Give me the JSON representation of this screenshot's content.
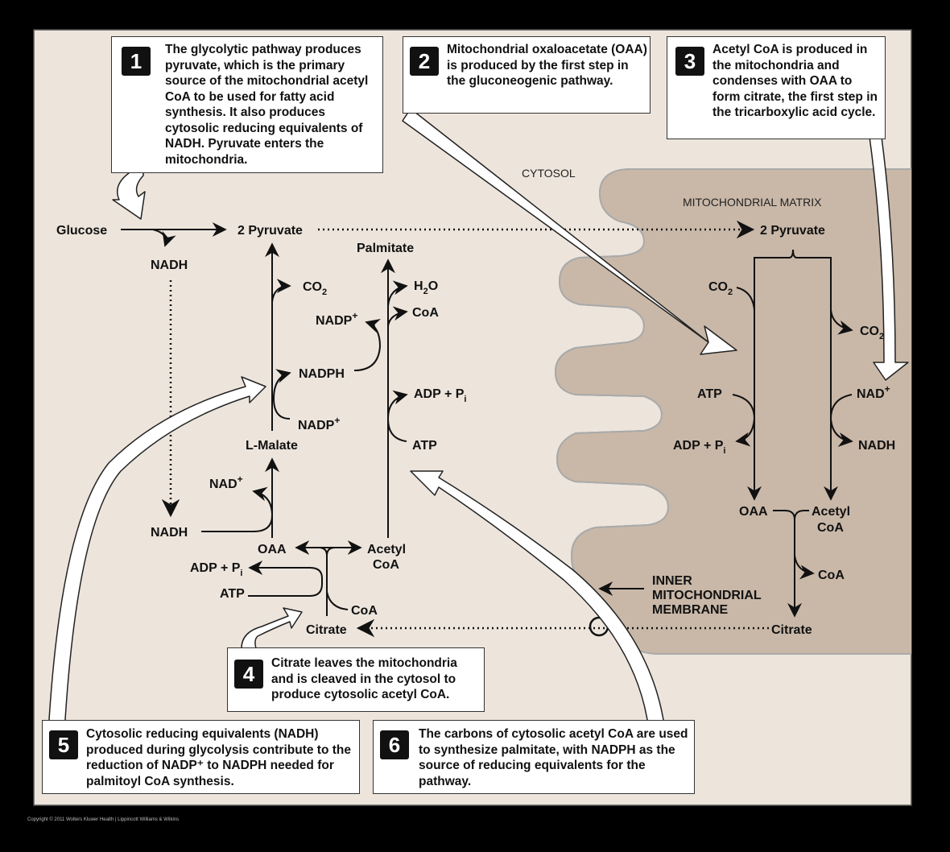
{
  "callouts": {
    "c1": {
      "num": "1",
      "text": "The glycolytic pathway produces pyruvate, which is the primary source of the mitochondrial acetyl CoA to be used for fatty acid synthesis.  It also produces cytosolic reducing equivalents of NADH. Pyruvate enters the mitochondria."
    },
    "c2": {
      "num": "2",
      "text": "Mitochondrial oxaloacetate (OAA) is produced by the first step in the gluconeogenic pathway."
    },
    "c3": {
      "num": "3",
      "text": "Acetyl CoA is produced in the mitochondria and condenses with OAA to form citrate, the first step in the tricarboxylic acid cycle."
    },
    "c4": {
      "num": "4",
      "text": "Citrate leaves the mitochondria and is cleaved in the cytosol to produce cytosolic acetyl CoA."
    },
    "c5": {
      "num": "5",
      "text": "Cytosolic reducing equivalents (NADH) produced during glycolysis contribute to the reduction of NADP⁺ to NADPH needed for palmitoyl CoA synthesis."
    },
    "c6": {
      "num": "6",
      "text": "The carbons of cytosolic acetyl CoA are used to synthesize palmitate, with NADPH as the source of reducing equivalents for the pathway."
    }
  },
  "regions": {
    "cytosol": "CYTOSOL",
    "matrix": "MITOCHONDRIAL MATRIX",
    "membrane_line1": "INNER",
    "membrane_line2": "MITOCHONDRIAL",
    "membrane_line3": "MEMBRANE"
  },
  "cytosol_labels": {
    "glucose": "Glucose",
    "nadh_top": "NADH",
    "pyruvate": "2 Pyruvate",
    "palmitate": "Palmitate",
    "co2": "CO",
    "co2_sub": "2",
    "h2o_h": "H",
    "h2o_2": "2",
    "h2o_o": "O",
    "nadp_plus_a": "NADP",
    "coa_a": "CoA",
    "nadph": "NADPH",
    "adp_pi_a": "ADP + P",
    "adp_pi_a_sub": "i",
    "nadp_plus_b": "NADP",
    "atp_a": "ATP",
    "lmalate": "L-Malate",
    "nad_plus": "NAD",
    "nadh_bottom": "NADH",
    "oaa": "OAA",
    "acetyl": "Acetyl",
    "acetyl_coa": "CoA",
    "adp_pi_b": "ADP + P",
    "adp_pi_b_sub": "i",
    "atp_b": "ATP",
    "coa_b": "CoA",
    "citrate": "Citrate",
    "plus": "+"
  },
  "matrix_labels": {
    "pyruvate": "2 Pyruvate",
    "co2_left": "CO",
    "co2_right": "CO",
    "sub2": "2",
    "atp": "ATP",
    "adp_pi": "ADP + P",
    "sub_i": "i",
    "nad_plus": "NAD",
    "nadh": "NADH",
    "oaa": "OAA",
    "acetyl": "Acetyl",
    "acetyl_coa": "CoA",
    "coa": "CoA",
    "citrate": "Citrate",
    "plus": "+"
  },
  "colors": {
    "background": "#ede5dc",
    "matrix": "#c9b8a8",
    "membrane_head": "#ffffff",
    "arrow_fill": "#ffffff",
    "text": "#111111",
    "frame": "#000000"
  },
  "copyright": "Copyright © 2011 Wolters Kluwer Health | Lippincott Williams & Wilkins"
}
